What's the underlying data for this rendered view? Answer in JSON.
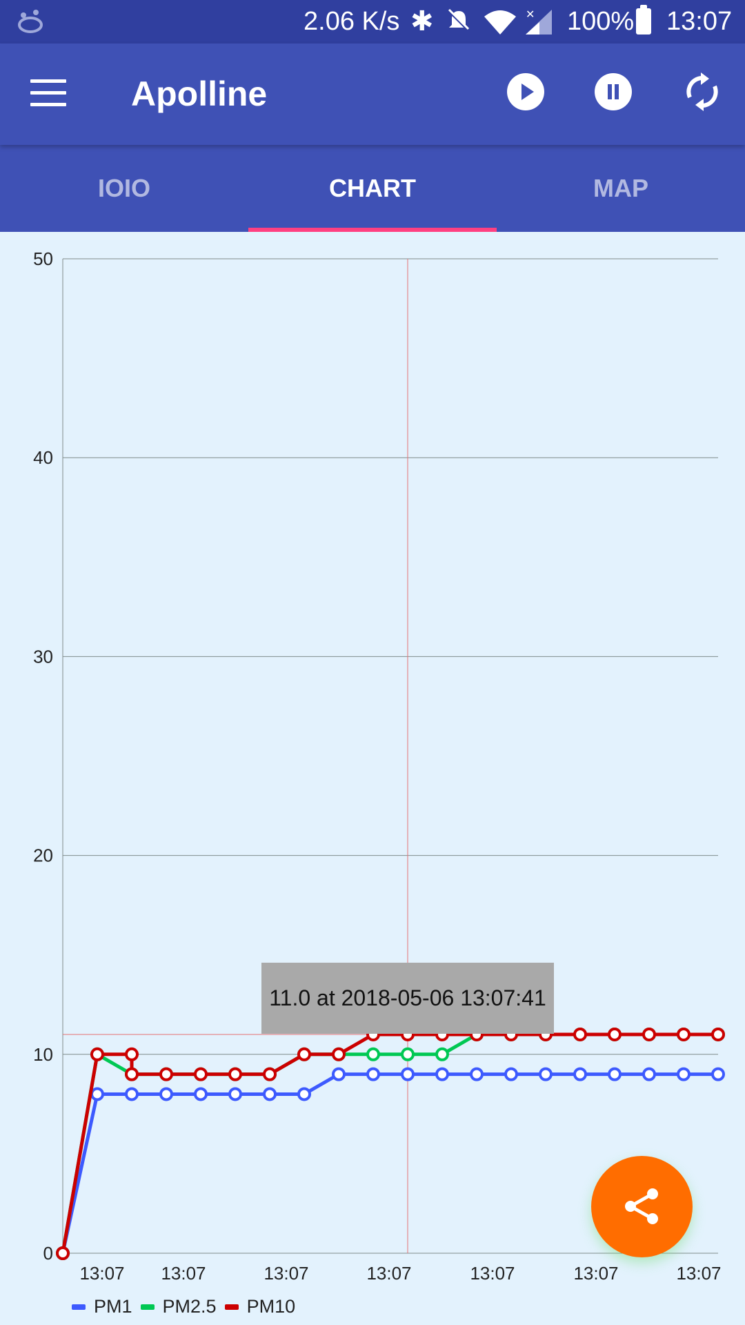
{
  "status_bar": {
    "network_speed": "2.06 K/s",
    "battery_percent": "100%",
    "time": "13:07",
    "icons": [
      "app-icon",
      "bluetooth-icon",
      "bell-off-icon",
      "wifi-icon",
      "signal-icon",
      "battery-icon"
    ]
  },
  "app_bar": {
    "title": "Apolline",
    "menu_icon": "menu-icon",
    "actions": [
      "play-icon",
      "pause-icon",
      "sync-icon"
    ]
  },
  "tabs": {
    "items": [
      {
        "label": "IOIO"
      },
      {
        "label": "CHART"
      },
      {
        "label": "MAP"
      }
    ],
    "active": "CHART",
    "indicator_color": "#ff4081"
  },
  "chart_data": {
    "type": "line",
    "y_ticks": [
      "0",
      "10",
      "20",
      "30",
      "40",
      "50"
    ],
    "x_tick_labels": [
      "13:07",
      "13:07",
      "13:07",
      "13:07",
      "13:07",
      "13:07",
      "13:07"
    ],
    "ylim": [
      0,
      50
    ],
    "x_point_count": 20,
    "grid": true,
    "legend_position": "bottom-left",
    "series": [
      {
        "name": "PM1",
        "color": "#3d5afe",
        "values": [
          0,
          8,
          8,
          8,
          8,
          8,
          8,
          8,
          9,
          9,
          9,
          9,
          9,
          9,
          9,
          9,
          9,
          9,
          9,
          9
        ]
      },
      {
        "name": "PM2.5",
        "color": "#00c853",
        "values": [
          0,
          10,
          9,
          9,
          9,
          9,
          9,
          10,
          10,
          10,
          10,
          10,
          11,
          11,
          11,
          11,
          11,
          11,
          11,
          11
        ]
      },
      {
        "name": "PM10",
        "color": "#cc0000",
        "values": [
          0,
          10,
          9,
          9,
          9,
          9,
          9,
          10,
          10,
          11,
          11,
          11,
          11,
          11,
          11,
          11,
          11,
          11,
          11,
          11
        ]
      }
    ],
    "pm10_extra_point_value": 10,
    "crosshair": {
      "x_index": 10,
      "y_value": 11.0
    },
    "tooltip": "11.0 at 2018-05-06 13:07:41"
  },
  "fab": {
    "icon": "share-icon",
    "color": "#ff6d00"
  }
}
